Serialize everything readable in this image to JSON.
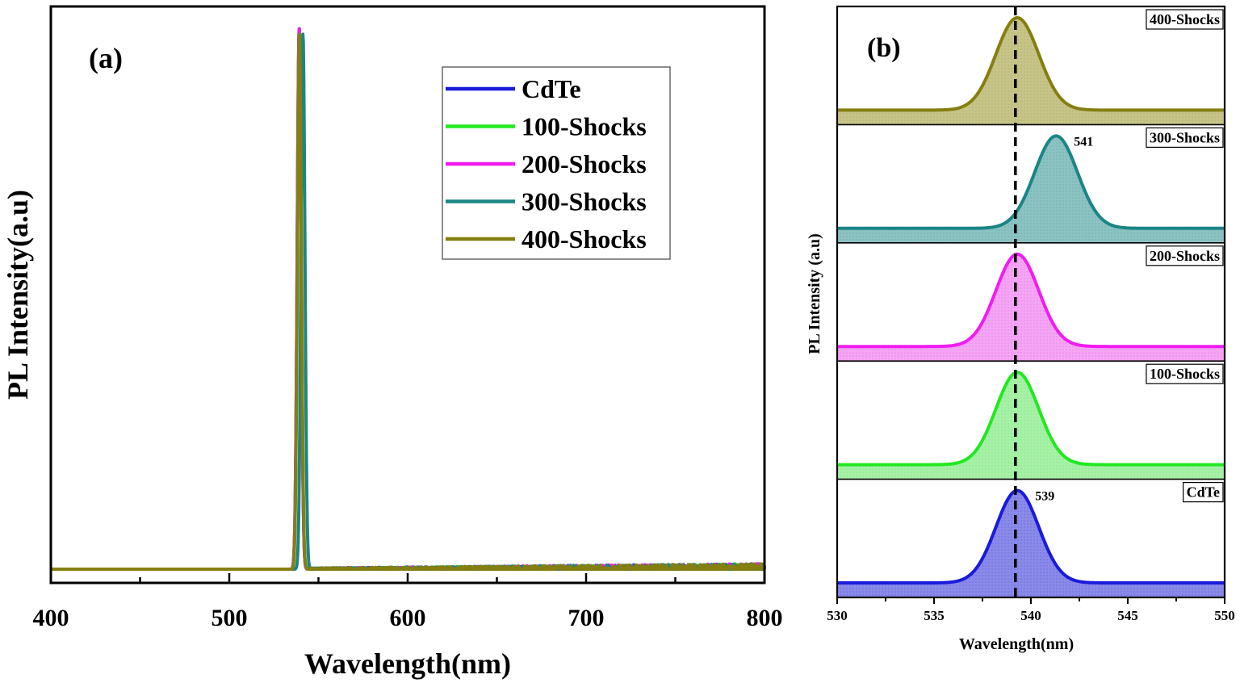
{
  "chart_data": [
    {
      "type": "line",
      "panel_label": "(a)",
      "xlabel": "Wavelength(nm)",
      "ylabel": "PL Intensity(a.u)",
      "xlim": [
        400,
        800
      ],
      "xticks": [
        400,
        500,
        600,
        700,
        800
      ],
      "ylim": [
        0,
        1.05
      ],
      "y_ticks_shown": false,
      "grid": false,
      "legend_position": "top-right",
      "baseline": 0.02,
      "series": [
        {
          "name": "CdTe",
          "color": "#1a1adb",
          "peak_center": 539.2,
          "peak_fwhm": 2.6,
          "peak_height": 1.0
        },
        {
          "name": "100-Shocks",
          "color": "#22e822",
          "peak_center": 539.3,
          "peak_fwhm": 2.6,
          "peak_height": 1.0
        },
        {
          "name": "200-Shocks",
          "color": "#f01cf0",
          "peak_center": 539.2,
          "peak_fwhm": 2.6,
          "peak_height": 1.0
        },
        {
          "name": "300-Shocks",
          "color": "#1b8585",
          "peak_center": 541.3,
          "peak_fwhm": 2.6,
          "peak_height": 0.99
        },
        {
          "name": "400-Shocks",
          "color": "#857f10",
          "peak_center": 539.3,
          "peak_fwhm": 2.6,
          "peak_height": 0.99
        }
      ]
    },
    {
      "type": "area",
      "panel_label": "(b)",
      "xlabel": "Wavelength(nm)",
      "ylabel": "PL Intensity (a.u)",
      "xlim": [
        530,
        550
      ],
      "xticks": [
        530,
        535,
        540,
        545,
        550
      ],
      "y_ticks_shown": false,
      "grid": false,
      "stacked_panels_top_to_bottom": [
        "400-Shocks",
        "300-Shocks",
        "200-Shocks",
        "100-Shocks",
        "CdTe"
      ],
      "reference_line_x": 539.2,
      "series": [
        {
          "name": "CdTe",
          "color": "#1a1adb",
          "fill": "#8a8ae8",
          "peak_center": 539.3,
          "peak_fwhm": 2.6,
          "annotation": "539"
        },
        {
          "name": "100-Shocks",
          "color": "#22e822",
          "fill": "#a8f0a8",
          "peak_center": 539.3,
          "peak_fwhm": 2.6,
          "annotation": ""
        },
        {
          "name": "200-Shocks",
          "color": "#f01cf0",
          "fill": "#f3a6f3",
          "peak_center": 539.3,
          "peak_fwhm": 2.6,
          "annotation": ""
        },
        {
          "name": "300-Shocks",
          "color": "#1b8585",
          "fill": "#8cc2c2",
          "peak_center": 541.3,
          "peak_fwhm": 2.6,
          "annotation": "541"
        },
        {
          "name": "400-Shocks",
          "color": "#857f10",
          "fill": "#c7c48a",
          "peak_center": 539.3,
          "peak_fwhm": 2.6,
          "annotation": ""
        }
      ]
    }
  ]
}
